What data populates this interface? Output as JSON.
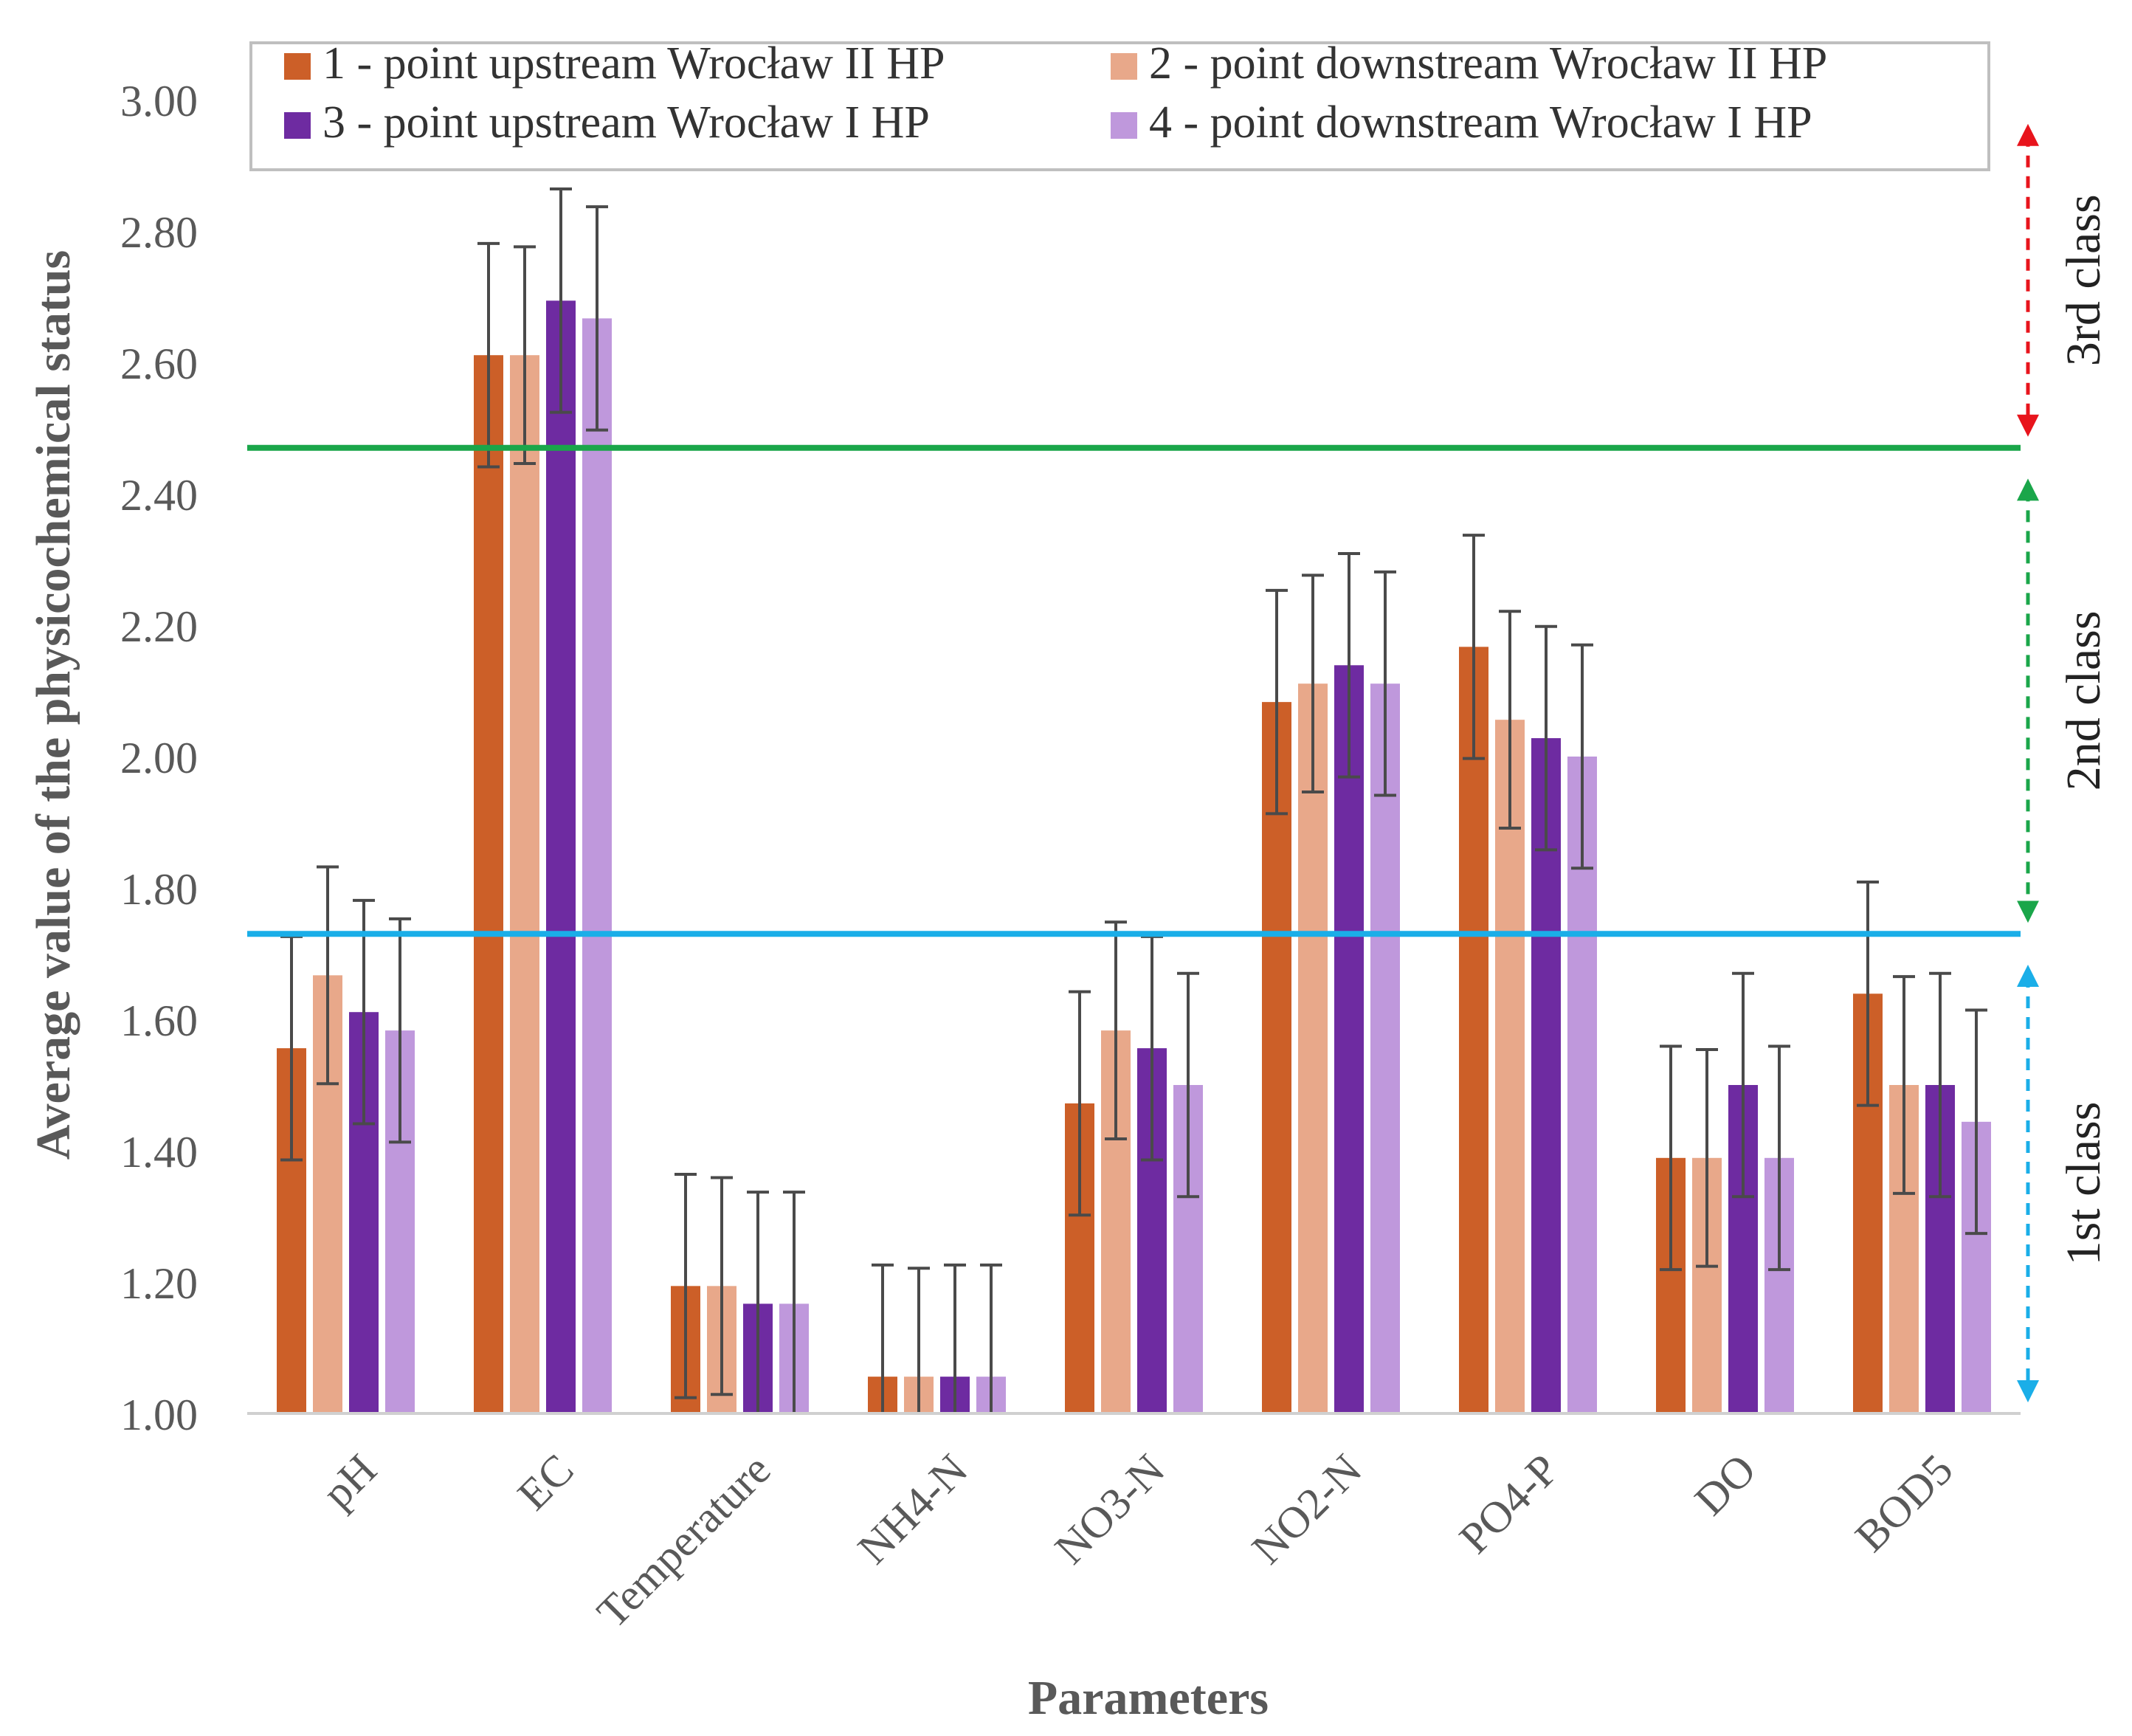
{
  "chart_data": {
    "type": "bar",
    "title": "",
    "xlabel": "Parameters",
    "ylabel": "Average value of the physicochemical status",
    "ylim": [
      1.0,
      3.0
    ],
    "yticks": [
      "1.00",
      "1.20",
      "1.40",
      "1.60",
      "1.80",
      "2.00",
      "2.20",
      "2.40",
      "2.60",
      "2.80",
      "3.00"
    ],
    "grid": false,
    "legend_position": "top",
    "categories": [
      "pH",
      "EC",
      "Temperature",
      "NH4-N",
      "NO3-N",
      "NO2-N",
      "PO4-P",
      "DO",
      "BOD5"
    ],
    "series": [
      {
        "name": "1 - point upstream Wrocław II HP",
        "color": "#cc5f28",
        "values": [
          1.556,
          2.611,
          1.194,
          1.056,
          1.472,
          2.083,
          2.167,
          1.389,
          1.639
        ],
        "errors": [
          0.17,
          0.17,
          0.17,
          0.17,
          0.17,
          0.17,
          0.17,
          0.17,
          0.17
        ]
      },
      {
        "name": "2 - point downstream Wrocław II HP",
        "color": "#e8a88a",
        "values": [
          1.667,
          2.611,
          1.194,
          1.056,
          1.583,
          2.111,
          2.056,
          1.389,
          1.5
        ],
        "errors": [
          0.165,
          0.165,
          0.165,
          0.165,
          0.165,
          0.165,
          0.165,
          0.165,
          0.165
        ]
      },
      {
        "name": "3 - point upstream Wrocław I HP",
        "color": "#6e2ba1",
        "values": [
          1.611,
          2.694,
          1.167,
          1.056,
          1.556,
          2.139,
          2.028,
          1.5,
          1.5
        ],
        "errors": [
          0.17,
          0.17,
          0.17,
          0.17,
          0.17,
          0.17,
          0.17,
          0.17,
          0.17
        ]
      },
      {
        "name": "4 - point downstream Wrocław I HP",
        "color": "#bf98dc",
        "values": [
          1.583,
          2.667,
          1.167,
          1.056,
          1.5,
          2.111,
          2.0,
          1.389,
          1.444
        ],
        "errors": [
          0.17,
          0.17,
          0.17,
          0.17,
          0.17,
          0.17,
          0.17,
          0.17,
          0.17
        ]
      }
    ],
    "reference_lines": [
      {
        "value": 2.47,
        "color": "#1aa64a"
      },
      {
        "value": 1.73,
        "color": "#1aaee8"
      }
    ],
    "class_ranges": [
      {
        "label": "3rd class",
        "from": 2.47,
        "to": 2.98,
        "color": "#e8141c"
      },
      {
        "label": "2nd class",
        "from": 1.73,
        "to": 2.44,
        "color": "#1aa64a"
      },
      {
        "label": "1st class",
        "from": 1.0,
        "to": 1.7,
        "color": "#1aaee8"
      }
    ]
  }
}
